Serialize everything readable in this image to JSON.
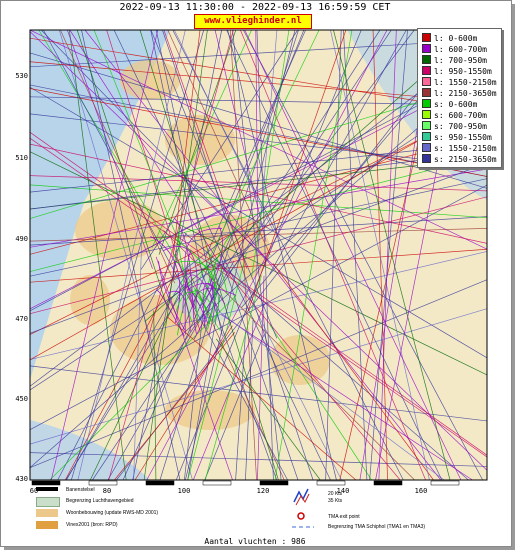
{
  "header": {
    "title": "2022-09-13 11:30:00 - 2022-09-13 16:59:59 CET",
    "badge": "www.vlieghinder.nl"
  },
  "axes": {
    "y_ticks": [
      "530",
      "510",
      "490",
      "470",
      "450",
      "430"
    ],
    "x_ticks": [
      "80",
      "100",
      "120",
      "140",
      "160"
    ],
    "x_start": "60"
  },
  "legend": [
    {
      "label": "l: 0-600m",
      "color": "#cc0000"
    },
    {
      "label": "l: 600-700m",
      "color": "#9900cc"
    },
    {
      "label": "l: 700-950m",
      "color": "#006600"
    },
    {
      "label": "l: 950-1550m",
      "color": "#cc0066"
    },
    {
      "label": "l: 1550-2150m",
      "color": "#ff6699"
    },
    {
      "label": "l: 2150-3650m",
      "color": "#993333"
    },
    {
      "label": "s: 0-600m",
      "color": "#00cc00"
    },
    {
      "label": "s: 600-700m",
      "color": "#99ff00"
    },
    {
      "label": "s: 700-950m",
      "color": "#66ff66"
    },
    {
      "label": "s: 950-1550m",
      "color": "#33cc99"
    },
    {
      "label": "s: 1550-2150m",
      "color": "#6666cc"
    },
    {
      "label": "s: 2150-3650m",
      "color": "#333399"
    }
  ],
  "bottom_legend": {
    "runway": "Banenstelsel",
    "airport_boundary": "Begrenzing Luchthavengebied",
    "housing": "Woonbebouwing (update RWS-MD 2001)",
    "vinex": "Vinex2001 (bron: RPD)",
    "wind_20": "20 Kts",
    "wind_35": "35 Kts",
    "tma_exit": "TMA exit point",
    "tma_boundary": "Begrenzing TMA Schiphol  (TMA1 en TMA3)"
  },
  "footer": "Aantal vluchten : 986",
  "colors": {
    "land": "#f3e9c6",
    "water": "#b8d4ea",
    "urban": "#ecc98a",
    "green": "#c9dfc9"
  }
}
